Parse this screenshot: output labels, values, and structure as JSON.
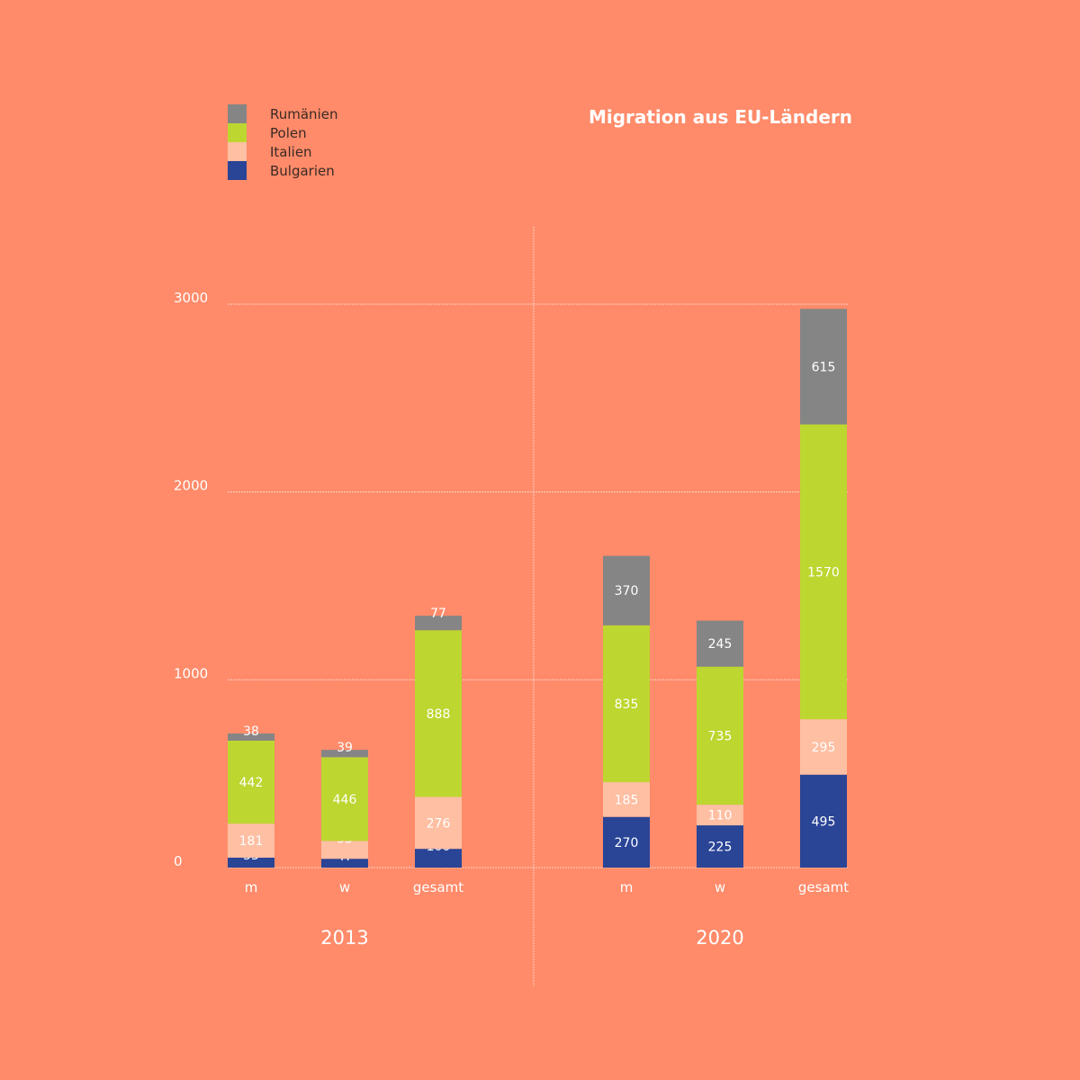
{
  "title": "Migration aus EU-Ländern",
  "legend": [
    {
      "label": "Rumänien",
      "color": "#858585"
    },
    {
      "label": "Polen",
      "color": "#BDD630"
    },
    {
      "label": "Italien",
      "color": "#FFBFA3"
    },
    {
      "label": "Bulgarien",
      "color": "#2A4496"
    }
  ],
  "chart_data": {
    "type": "bar",
    "stacked": true,
    "groups": [
      "2013",
      "2020"
    ],
    "categories": [
      "m",
      "w",
      "gesamt",
      "m",
      "w",
      "gesamt"
    ],
    "yticks": [
      "0",
      "1000",
      "2000",
      "3000"
    ],
    "ylim": [
      0,
      3000
    ],
    "grid": true,
    "legend_position": "top-left",
    "series": [
      {
        "name": "Bulgarien",
        "color": "#2A4496",
        "values": [
          53,
          47,
          100,
          270,
          225,
          495
        ]
      },
      {
        "name": "Italien",
        "color": "#FFBFA3",
        "values": [
          181,
          95,
          276,
          185,
          110,
          295
        ]
      },
      {
        "name": "Polen",
        "color": "#BDD630",
        "values": [
          442,
          446,
          888,
          835,
          735,
          1570
        ]
      },
      {
        "name": "Rumänien",
        "color": "#858585",
        "values": [
          38,
          39,
          77,
          370,
          245,
          615
        ]
      }
    ]
  }
}
